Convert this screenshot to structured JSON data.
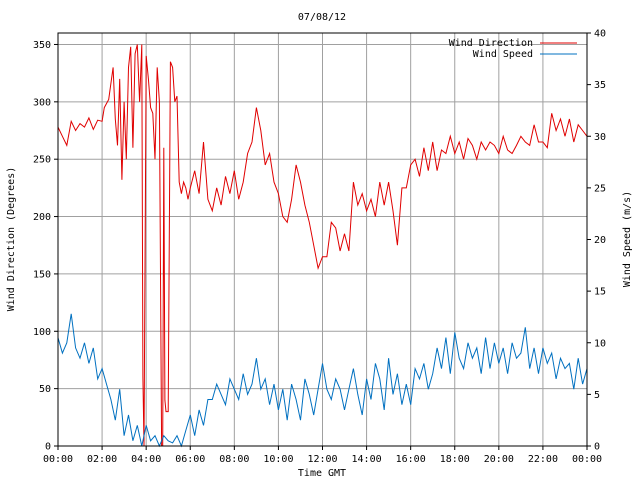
{
  "chart_data": {
    "type": "line",
    "title": "07/08/12",
    "xlabel": "Time GMT",
    "ylabel_left": "Wind Direction (Degrees)",
    "ylabel_right": "Wind Speed (m/s)",
    "x_ticks": [
      "00:00",
      "02:00",
      "04:00",
      "06:00",
      "08:00",
      "10:00",
      "12:00",
      "14:00",
      "16:00",
      "18:00",
      "20:00",
      "22:00",
      "00:00"
    ],
    "x_range_hours": [
      0,
      24
    ],
    "y_left_range": [
      0,
      360
    ],
    "y_left_ticks": [
      0,
      50,
      100,
      150,
      200,
      250,
      300,
      350
    ],
    "y_right_range": [
      0,
      40
    ],
    "y_right_ticks": [
      0,
      5,
      10,
      15,
      20,
      25,
      30,
      35,
      40
    ],
    "grid": true,
    "legend_position": "top-right",
    "series": [
      {
        "name": "Wind Direction",
        "axis": "left",
        "color": "#e00000",
        "points": [
          [
            0.0,
            278
          ],
          [
            0.2,
            270
          ],
          [
            0.4,
            262
          ],
          [
            0.6,
            283
          ],
          [
            0.8,
            275
          ],
          [
            1.0,
            281
          ],
          [
            1.2,
            278
          ],
          [
            1.4,
            286
          ],
          [
            1.6,
            276
          ],
          [
            1.8,
            284
          ],
          [
            2.0,
            283
          ],
          [
            2.1,
            295
          ],
          [
            2.3,
            302
          ],
          [
            2.5,
            330
          ],
          [
            2.6,
            285
          ],
          [
            2.7,
            262
          ],
          [
            2.8,
            320
          ],
          [
            2.9,
            232
          ],
          [
            3.0,
            300
          ],
          [
            3.1,
            250
          ],
          [
            3.2,
            330
          ],
          [
            3.3,
            348
          ],
          [
            3.4,
            260
          ],
          [
            3.5,
            342
          ],
          [
            3.6,
            350
          ],
          [
            3.7,
            300
          ],
          [
            3.8,
            350
          ],
          [
            3.85,
            60
          ],
          [
            3.9,
            0
          ],
          [
            4.0,
            340
          ],
          [
            4.1,
            320
          ],
          [
            4.2,
            295
          ],
          [
            4.3,
            290
          ],
          [
            4.4,
            250
          ],
          [
            4.5,
            330
          ],
          [
            4.6,
            300
          ],
          [
            4.7,
            0
          ],
          [
            4.75,
            0
          ],
          [
            4.8,
            260
          ],
          [
            4.85,
            40
          ],
          [
            4.9,
            30
          ],
          [
            5.0,
            30
          ],
          [
            5.1,
            335
          ],
          [
            5.2,
            330
          ],
          [
            5.3,
            300
          ],
          [
            5.4,
            305
          ],
          [
            5.5,
            230
          ],
          [
            5.6,
            220
          ],
          [
            5.7,
            230
          ],
          [
            5.8,
            225
          ],
          [
            5.9,
            215
          ],
          [
            6.0,
            225
          ],
          [
            6.2,
            240
          ],
          [
            6.4,
            220
          ],
          [
            6.6,
            265
          ],
          [
            6.8,
            215
          ],
          [
            7.0,
            205
          ],
          [
            7.2,
            225
          ],
          [
            7.4,
            210
          ],
          [
            7.6,
            235
          ],
          [
            7.8,
            220
          ],
          [
            8.0,
            240
          ],
          [
            8.2,
            215
          ],
          [
            8.4,
            230
          ],
          [
            8.6,
            255
          ],
          [
            8.8,
            265
          ],
          [
            9.0,
            295
          ],
          [
            9.2,
            275
          ],
          [
            9.4,
            245
          ],
          [
            9.6,
            255
          ],
          [
            9.8,
            230
          ],
          [
            10.0,
            220
          ],
          [
            10.2,
            200
          ],
          [
            10.4,
            195
          ],
          [
            10.6,
            215
          ],
          [
            10.8,
            245
          ],
          [
            11.0,
            230
          ],
          [
            11.2,
            210
          ],
          [
            11.4,
            195
          ],
          [
            11.6,
            175
          ],
          [
            11.8,
            155
          ],
          [
            12.0,
            165
          ],
          [
            12.2,
            165
          ],
          [
            12.4,
            195
          ],
          [
            12.6,
            190
          ],
          [
            12.8,
            170
          ],
          [
            13.0,
            185
          ],
          [
            13.2,
            170
          ],
          [
            13.4,
            230
          ],
          [
            13.6,
            210
          ],
          [
            13.8,
            220
          ],
          [
            14.0,
            205
          ],
          [
            14.2,
            215
          ],
          [
            14.4,
            200
          ],
          [
            14.6,
            230
          ],
          [
            14.8,
            210
          ],
          [
            15.0,
            230
          ],
          [
            15.2,
            205
          ],
          [
            15.4,
            175
          ],
          [
            15.6,
            225
          ],
          [
            15.8,
            225
          ],
          [
            16.0,
            245
          ],
          [
            16.2,
            250
          ],
          [
            16.4,
            235
          ],
          [
            16.6,
            260
          ],
          [
            16.8,
            240
          ],
          [
            17.0,
            265
          ],
          [
            17.2,
            240
          ],
          [
            17.4,
            258
          ],
          [
            17.6,
            255
          ],
          [
            17.8,
            270
          ],
          [
            18.0,
            255
          ],
          [
            18.2,
            265
          ],
          [
            18.4,
            250
          ],
          [
            18.6,
            268
          ],
          [
            18.8,
            262
          ],
          [
            19.0,
            250
          ],
          [
            19.2,
            265
          ],
          [
            19.4,
            258
          ],
          [
            19.6,
            265
          ],
          [
            19.8,
            262
          ],
          [
            20.0,
            255
          ],
          [
            20.2,
            270
          ],
          [
            20.4,
            258
          ],
          [
            20.6,
            255
          ],
          [
            20.8,
            262
          ],
          [
            21.0,
            270
          ],
          [
            21.2,
            265
          ],
          [
            21.4,
            262
          ],
          [
            21.6,
            280
          ],
          [
            21.8,
            265
          ],
          [
            22.0,
            265
          ],
          [
            22.2,
            260
          ],
          [
            22.4,
            290
          ],
          [
            22.6,
            275
          ],
          [
            22.8,
            285
          ],
          [
            23.0,
            270
          ],
          [
            23.2,
            285
          ],
          [
            23.4,
            265
          ],
          [
            23.6,
            280
          ],
          [
            23.8,
            275
          ],
          [
            24.0,
            270
          ]
        ]
      },
      {
        "name": "Wind Speed",
        "axis": "right",
        "color": "#0070c0",
        "points": [
          [
            0.0,
            10.5
          ],
          [
            0.2,
            9.0
          ],
          [
            0.4,
            10.0
          ],
          [
            0.6,
            12.8
          ],
          [
            0.8,
            9.5
          ],
          [
            1.0,
            8.5
          ],
          [
            1.2,
            10.0
          ],
          [
            1.4,
            8.0
          ],
          [
            1.6,
            9.5
          ],
          [
            1.8,
            6.5
          ],
          [
            2.0,
            7.5
          ],
          [
            2.2,
            6.0
          ],
          [
            2.4,
            4.5
          ],
          [
            2.6,
            2.5
          ],
          [
            2.8,
            5.5
          ],
          [
            3.0,
            1.0
          ],
          [
            3.2,
            3.0
          ],
          [
            3.4,
            0.5
          ],
          [
            3.6,
            2.0
          ],
          [
            3.8,
            0.0
          ],
          [
            4.0,
            2.0
          ],
          [
            4.2,
            0.5
          ],
          [
            4.4,
            1.0
          ],
          [
            4.6,
            0.0
          ],
          [
            4.8,
            1.0
          ],
          [
            5.0,
            0.5
          ],
          [
            5.2,
            0.3
          ],
          [
            5.4,
            1.0
          ],
          [
            5.6,
            0.0
          ],
          [
            5.8,
            1.5
          ],
          [
            6.0,
            3.0
          ],
          [
            6.2,
            1.0
          ],
          [
            6.4,
            3.5
          ],
          [
            6.6,
            2.0
          ],
          [
            6.8,
            4.5
          ],
          [
            7.0,
            4.5
          ],
          [
            7.2,
            6.0
          ],
          [
            7.4,
            5.0
          ],
          [
            7.6,
            4.0
          ],
          [
            7.8,
            6.5
          ],
          [
            8.0,
            5.5
          ],
          [
            8.2,
            4.5
          ],
          [
            8.4,
            7.0
          ],
          [
            8.6,
            5.0
          ],
          [
            8.8,
            6.0
          ],
          [
            9.0,
            8.5
          ],
          [
            9.2,
            5.5
          ],
          [
            9.4,
            6.5
          ],
          [
            9.6,
            4.0
          ],
          [
            9.8,
            6.0
          ],
          [
            10.0,
            3.5
          ],
          [
            10.2,
            5.5
          ],
          [
            10.4,
            2.5
          ],
          [
            10.6,
            6.0
          ],
          [
            10.8,
            4.5
          ],
          [
            11.0,
            2.5
          ],
          [
            11.2,
            6.5
          ],
          [
            11.4,
            5.0
          ],
          [
            11.6,
            3.0
          ],
          [
            11.8,
            5.5
          ],
          [
            12.0,
            8.0
          ],
          [
            12.2,
            5.5
          ],
          [
            12.4,
            4.5
          ],
          [
            12.6,
            6.5
          ],
          [
            12.8,
            5.5
          ],
          [
            13.0,
            3.5
          ],
          [
            13.2,
            5.5
          ],
          [
            13.4,
            7.5
          ],
          [
            13.6,
            5.0
          ],
          [
            13.8,
            3.0
          ],
          [
            14.0,
            6.5
          ],
          [
            14.2,
            4.5
          ],
          [
            14.4,
            8.0
          ],
          [
            14.6,
            6.5
          ],
          [
            14.8,
            3.5
          ],
          [
            15.0,
            8.5
          ],
          [
            15.2,
            5.0
          ],
          [
            15.4,
            7.0
          ],
          [
            15.6,
            4.0
          ],
          [
            15.8,
            6.0
          ],
          [
            16.0,
            4.0
          ],
          [
            16.2,
            7.5
          ],
          [
            16.4,
            6.5
          ],
          [
            16.6,
            8.0
          ],
          [
            16.8,
            5.5
          ],
          [
            17.0,
            7.0
          ],
          [
            17.2,
            9.5
          ],
          [
            17.4,
            7.5
          ],
          [
            17.6,
            10.5
          ],
          [
            17.8,
            7.0
          ],
          [
            18.0,
            11.0
          ],
          [
            18.2,
            8.5
          ],
          [
            18.4,
            7.5
          ],
          [
            18.6,
            10.0
          ],
          [
            18.8,
            8.5
          ],
          [
            19.0,
            9.5
          ],
          [
            19.2,
            7.0
          ],
          [
            19.4,
            10.5
          ],
          [
            19.6,
            7.5
          ],
          [
            19.8,
            10.0
          ],
          [
            20.0,
            8.0
          ],
          [
            20.2,
            9.5
          ],
          [
            20.4,
            7.0
          ],
          [
            20.6,
            10.0
          ],
          [
            20.8,
            8.5
          ],
          [
            21.0,
            9.0
          ],
          [
            21.2,
            11.5
          ],
          [
            21.4,
            7.5
          ],
          [
            21.6,
            9.5
          ],
          [
            21.8,
            7.0
          ],
          [
            22.0,
            9.5
          ],
          [
            22.2,
            8.0
          ],
          [
            22.4,
            9.0
          ],
          [
            22.6,
            6.5
          ],
          [
            22.8,
            8.5
          ],
          [
            23.0,
            7.5
          ],
          [
            23.2,
            8.0
          ],
          [
            23.4,
            5.5
          ],
          [
            23.6,
            8.5
          ],
          [
            23.8,
            6.0
          ],
          [
            24.0,
            7.5
          ]
        ]
      }
    ]
  }
}
